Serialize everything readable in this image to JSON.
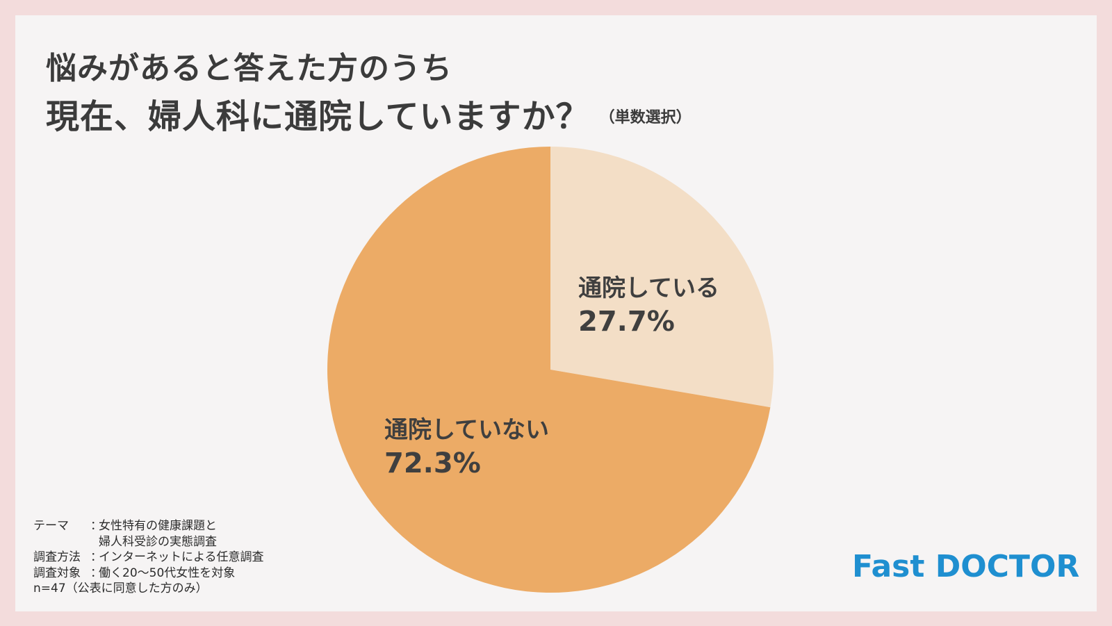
{
  "title": {
    "line1": "悩みがあると答えた方のうち",
    "line2": "現在、婦人科に通院していますか？",
    "subtitle": "（単数選択）"
  },
  "colors": {
    "frame_background": "#f3dcdc",
    "panel_background": "#f6f4f4",
    "slice_not_visiting": "#ecab66",
    "slice_visiting": "#f3dec6",
    "text": "#3b3b3b",
    "logo": "#1f8fd0"
  },
  "chart_data": {
    "type": "pie",
    "start": "12 o'clock",
    "direction": "clockwise",
    "labels_on_slices": true,
    "slices": [
      {
        "label": "通院している",
        "value": 27.7,
        "value_label": "27.7%",
        "color": "#f3dec6"
      },
      {
        "label": "通院していない",
        "value": 72.3,
        "value_label": "72.3%",
        "color": "#ecab66"
      }
    ]
  },
  "survey_info": {
    "theme_key": "テーマ",
    "theme_line1": "女性特有の健康課題と",
    "theme_line2": "婦人科受診の実態調査",
    "method_key": "調査方法",
    "method_value": "インターネットによる任意調査",
    "target_key": "調査対象",
    "target_value": "働く20〜50代女性を対象",
    "separator": "：",
    "sample": "n=47（公表に同意した方のみ）"
  },
  "logo": {
    "text": "Fast DOCTOR"
  }
}
